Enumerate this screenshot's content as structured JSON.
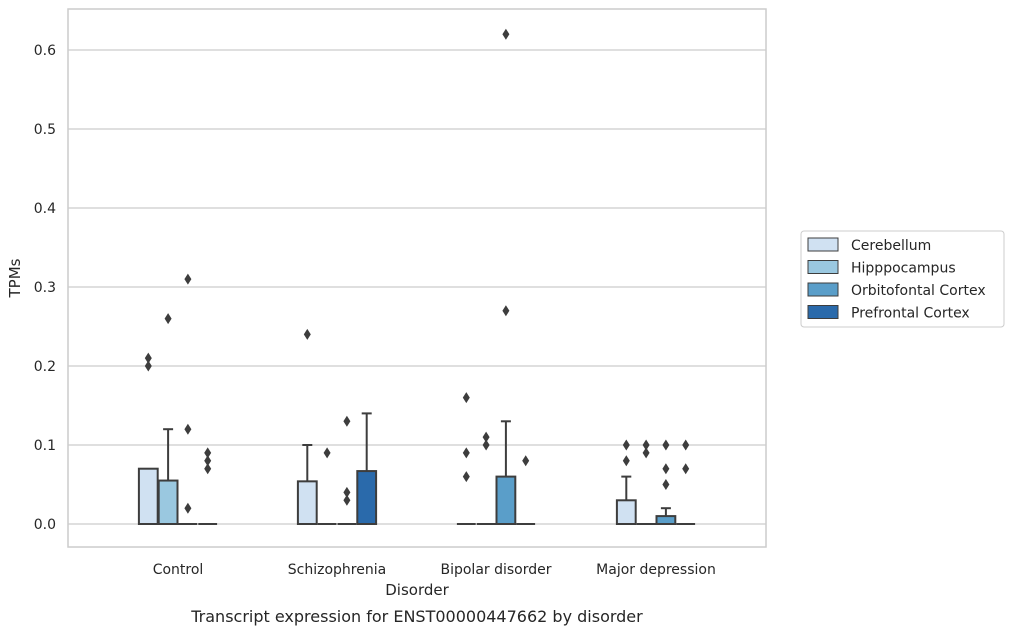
{
  "chart_data": {
    "type": "box",
    "xlabel": "Disorder",
    "ylabel": "TPMs",
    "caption": "Transcript expression for ENST00000447662 by disorder",
    "categories": [
      "Control",
      "Schizophrenia",
      "Bipolar disorder",
      "Major depression"
    ],
    "ylim": [
      -0.03,
      0.65
    ],
    "yticks": [
      "0.0",
      "0.1",
      "0.2",
      "0.3",
      "0.4",
      "0.5",
      "0.6"
    ],
    "grid": true,
    "legend_position": "right",
    "series": [
      {
        "name": "Cerebellum",
        "color": "#d0e1f2",
        "boxes": [
          {
            "category": "Control",
            "q1": 0.0,
            "median": 0.0,
            "q3": 0.07,
            "whisker_low": 0.0,
            "whisker_high": 0.07,
            "outliers": [
              0.21,
              0.2
            ]
          },
          {
            "category": "Schizophrenia",
            "q1": 0.0,
            "median": 0.0,
            "q3": 0.054,
            "whisker_low": 0.0,
            "whisker_high": 0.1,
            "outliers": [
              0.24
            ]
          },
          {
            "category": "Bipolar disorder",
            "q1": 0.0,
            "median": 0.0,
            "q3": 0.0,
            "whisker_low": 0.0,
            "whisker_high": 0.0,
            "outliers": [
              0.16,
              0.09,
              0.06
            ]
          },
          {
            "category": "Major depression",
            "q1": 0.0,
            "median": 0.0,
            "q3": 0.03,
            "whisker_low": 0.0,
            "whisker_high": 0.06,
            "outliers": [
              0.1,
              0.08
            ]
          }
        ]
      },
      {
        "name": "Hipppocampus",
        "color": "#9ac8e0",
        "boxes": [
          {
            "category": "Control",
            "q1": 0.0,
            "median": 0.0,
            "q3": 0.055,
            "whisker_low": 0.0,
            "whisker_high": 0.12,
            "outliers": [
              0.26
            ]
          },
          {
            "category": "Schizophrenia",
            "q1": 0.0,
            "median": 0.0,
            "q3": 0.0,
            "whisker_low": 0.0,
            "whisker_high": 0.0,
            "outliers": [
              0.09
            ]
          },
          {
            "category": "Bipolar disorder",
            "q1": 0.0,
            "median": 0.0,
            "q3": 0.0,
            "whisker_low": 0.0,
            "whisker_high": 0.0,
            "outliers": [
              0.11,
              0.1
            ]
          },
          {
            "category": "Major depression",
            "q1": 0.0,
            "median": 0.0,
            "q3": 0.0,
            "whisker_low": 0.0,
            "whisker_high": 0.0,
            "outliers": [
              0.1,
              0.09
            ]
          }
        ]
      },
      {
        "name": "Orbitofontal Cortex",
        "color": "#5a9ec9",
        "boxes": [
          {
            "category": "Control",
            "q1": 0.0,
            "median": 0.0,
            "q3": 0.0,
            "whisker_low": 0.0,
            "whisker_high": 0.0,
            "outliers": [
              0.31,
              0.12,
              0.02
            ]
          },
          {
            "category": "Schizophrenia",
            "q1": 0.0,
            "median": 0.0,
            "q3": 0.0,
            "whisker_low": 0.0,
            "whisker_high": 0.0,
            "outliers": [
              0.13,
              0.04,
              0.03
            ]
          },
          {
            "category": "Bipolar disorder",
            "q1": 0.0,
            "median": 0.0,
            "q3": 0.06,
            "whisker_low": 0.0,
            "whisker_high": 0.13,
            "outliers": [
              0.62,
              0.27
            ]
          },
          {
            "category": "Major depression",
            "q1": 0.0,
            "median": 0.0,
            "q3": 0.01,
            "whisker_low": 0.0,
            "whisker_high": 0.02,
            "outliers": [
              0.1,
              0.07,
              0.05
            ]
          }
        ]
      },
      {
        "name": "Prefrontal Cortex",
        "color": "#2a6aab",
        "boxes": [
          {
            "category": "Control",
            "q1": 0.0,
            "median": 0.0,
            "q3": 0.0,
            "whisker_low": 0.0,
            "whisker_high": 0.0,
            "outliers": [
              0.09,
              0.08,
              0.07
            ]
          },
          {
            "category": "Schizophrenia",
            "q1": 0.0,
            "median": 0.0,
            "q3": 0.067,
            "whisker_low": 0.0,
            "whisker_high": 0.14,
            "outliers": []
          },
          {
            "category": "Bipolar disorder",
            "q1": 0.0,
            "median": 0.0,
            "q3": 0.0,
            "whisker_low": 0.0,
            "whisker_high": 0.0,
            "outliers": [
              0.08
            ]
          },
          {
            "category": "Major depression",
            "q1": 0.0,
            "median": 0.0,
            "q3": 0.0,
            "whisker_low": 0.0,
            "whisker_high": 0.0,
            "outliers": [
              0.1,
              0.07
            ]
          }
        ]
      }
    ]
  }
}
